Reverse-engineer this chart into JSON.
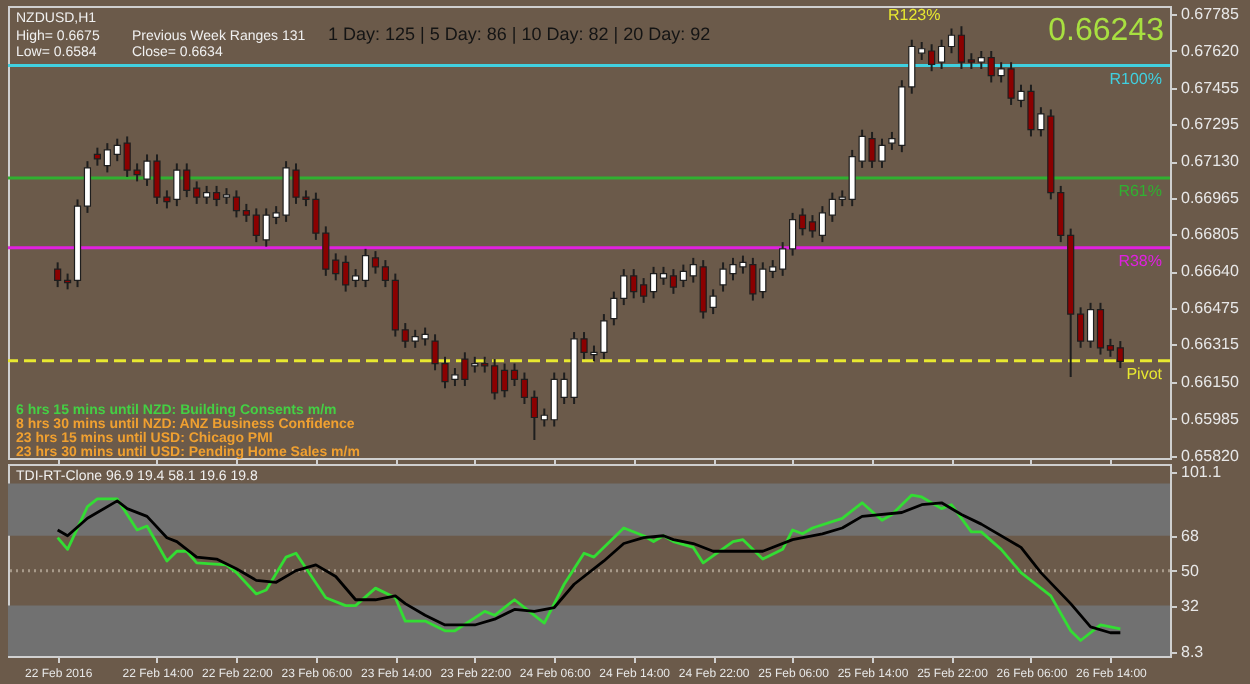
{
  "chart_data": [
    {
      "type": "candlestick",
      "title": "NZDUSD,H1",
      "x": [
        "2016-02-22T04:00",
        "2016-02-22T05:00",
        "2016-02-22T06:00",
        "2016-02-22T07:00",
        "2016-02-22T08:00",
        "2016-02-22T09:00",
        "2016-02-22T10:00",
        "2016-02-22T11:00",
        "2016-02-22T12:00",
        "2016-02-22T13:00",
        "2016-02-22T14:00",
        "2016-02-22T15:00",
        "2016-02-22T16:00",
        "2016-02-22T17:00",
        "2016-02-22T18:00",
        "2016-02-22T19:00",
        "2016-02-22T20:00",
        "2016-02-22T21:00",
        "2016-02-22T22:00",
        "2016-02-22T23:00",
        "2016-02-23T00:00",
        "2016-02-23T01:00",
        "2016-02-23T02:00",
        "2016-02-23T03:00",
        "2016-02-23T04:00",
        "2016-02-23T05:00",
        "2016-02-23T06:00",
        "2016-02-23T07:00",
        "2016-02-23T08:00",
        "2016-02-23T09:00",
        "2016-02-23T10:00",
        "2016-02-23T11:00",
        "2016-02-23T12:00",
        "2016-02-23T13:00",
        "2016-02-23T14:00",
        "2016-02-23T15:00",
        "2016-02-23T16:00",
        "2016-02-23T17:00",
        "2016-02-23T18:00",
        "2016-02-23T19:00",
        "2016-02-23T20:00",
        "2016-02-23T21:00",
        "2016-02-23T22:00",
        "2016-02-23T23:00",
        "2016-02-24T00:00",
        "2016-02-24T01:00",
        "2016-02-24T02:00",
        "2016-02-24T03:00",
        "2016-02-24T04:00",
        "2016-02-24T05:00",
        "2016-02-24T06:00",
        "2016-02-24T07:00",
        "2016-02-24T08:00",
        "2016-02-24T09:00",
        "2016-02-24T10:00",
        "2016-02-24T11:00",
        "2016-02-24T12:00",
        "2016-02-24T13:00",
        "2016-02-24T14:00",
        "2016-02-24T15:00",
        "2016-02-24T16:00",
        "2016-02-24T17:00",
        "2016-02-24T18:00",
        "2016-02-24T19:00",
        "2016-02-24T20:00",
        "2016-02-24T21:00",
        "2016-02-24T22:00",
        "2016-02-24T23:00",
        "2016-02-25T00:00",
        "2016-02-25T01:00",
        "2016-02-25T02:00",
        "2016-02-25T03:00",
        "2016-02-25T04:00",
        "2016-02-25T05:00",
        "2016-02-25T06:00",
        "2016-02-25T07:00",
        "2016-02-25T08:00",
        "2016-02-25T09:00",
        "2016-02-25T10:00",
        "2016-02-25T11:00",
        "2016-02-25T12:00",
        "2016-02-25T13:00",
        "2016-02-25T14:00",
        "2016-02-25T15:00",
        "2016-02-25T16:00",
        "2016-02-25T17:00",
        "2016-02-25T18:00",
        "2016-02-25T19:00",
        "2016-02-25T20:00",
        "2016-02-25T21:00",
        "2016-02-25T22:00",
        "2016-02-25T23:00",
        "2016-02-26T00:00",
        "2016-02-26T01:00",
        "2016-02-26T02:00",
        "2016-02-26T03:00",
        "2016-02-26T04:00",
        "2016-02-26T05:00",
        "2016-02-26T06:00",
        "2016-02-26T07:00",
        "2016-02-26T08:00",
        "2016-02-26T09:00",
        "2016-02-26T10:00",
        "2016-02-26T11:00",
        "2016-02-26T12:00",
        "2016-02-26T13:00",
        "2016-02-26T14:00",
        "2016-02-26T15:00"
      ],
      "ohlc": [
        [
          0.6665,
          0.6668,
          0.6657,
          0.666
        ],
        [
          0.666,
          0.6663,
          0.6656,
          0.6659
        ],
        [
          0.666,
          0.6696,
          0.6657,
          0.6693
        ],
        [
          0.6693,
          0.6713,
          0.669,
          0.671
        ],
        [
          0.6716,
          0.6719,
          0.6711,
          0.6714
        ],
        [
          0.6711,
          0.6721,
          0.6708,
          0.6718
        ],
        [
          0.6716,
          0.6723,
          0.6713,
          0.672
        ],
        [
          0.6721,
          0.6724,
          0.6706,
          0.6709
        ],
        [
          0.6709,
          0.6712,
          0.6704,
          0.6707
        ],
        [
          0.6705,
          0.6716,
          0.6702,
          0.6713
        ],
        [
          0.6713,
          0.6716,
          0.6694,
          0.6697
        ],
        [
          0.6697,
          0.67,
          0.6692,
          0.6695
        ],
        [
          0.6696,
          0.6712,
          0.6693,
          0.6709
        ],
        [
          0.6709,
          0.6712,
          0.6697,
          0.67
        ],
        [
          0.6701,
          0.6704,
          0.6694,
          0.6697
        ],
        [
          0.6697,
          0.6702,
          0.6694,
          0.6699
        ],
        [
          0.6699,
          0.6702,
          0.6693,
          0.6696
        ],
        [
          0.6697,
          0.6701,
          0.6694,
          0.6698
        ],
        [
          0.6697,
          0.67,
          0.6688,
          0.6691
        ],
        [
          0.6691,
          0.6694,
          0.6686,
          0.6689
        ],
        [
          0.6689,
          0.6692,
          0.6677,
          0.668
        ],
        [
          0.6678,
          0.6692,
          0.6675,
          0.6689
        ],
        [
          0.6688,
          0.6693,
          0.6685,
          0.669
        ],
        [
          0.6689,
          0.6713,
          0.6686,
          0.671
        ],
        [
          0.6709,
          0.6712,
          0.6694,
          0.6697
        ],
        [
          0.6697,
          0.67,
          0.6693,
          0.6696
        ],
        [
          0.6696,
          0.6699,
          0.6678,
          0.6681
        ],
        [
          0.6681,
          0.6684,
          0.6662,
          0.6665
        ],
        [
          0.6669,
          0.6672,
          0.666,
          0.6663
        ],
        [
          0.6668,
          0.6671,
          0.6655,
          0.6658
        ],
        [
          0.666,
          0.6665,
          0.6657,
          0.6662
        ],
        [
          0.666,
          0.6674,
          0.6657,
          0.6671
        ],
        [
          0.667,
          0.6673,
          0.6663,
          0.6666
        ],
        [
          0.6666,
          0.6669,
          0.6657,
          0.666
        ],
        [
          0.666,
          0.6663,
          0.6635,
          0.6638
        ],
        [
          0.6638,
          0.6641,
          0.663,
          0.6633
        ],
        [
          0.6633,
          0.6638,
          0.663,
          0.6635
        ],
        [
          0.6634,
          0.6639,
          0.6631,
          0.6636
        ],
        [
          0.6633,
          0.6636,
          0.662,
          0.6623
        ],
        [
          0.6623,
          0.6626,
          0.6612,
          0.6615
        ],
        [
          0.6616,
          0.6621,
          0.6613,
          0.6618
        ],
        [
          0.6625,
          0.6628,
          0.6613,
          0.6616
        ],
        [
          0.6622,
          0.6626,
          0.6619,
          0.6623
        ],
        [
          0.6623,
          0.6626,
          0.6619,
          0.6622
        ],
        [
          0.6622,
          0.6625,
          0.6607,
          0.661
        ],
        [
          0.662,
          0.6623,
          0.6608,
          0.6611
        ],
        [
          0.662,
          0.6623,
          0.6613,
          0.6616
        ],
        [
          0.6616,
          0.6619,
          0.6605,
          0.6608
        ],
        [
          0.6608,
          0.6611,
          0.6589,
          0.6599
        ],
        [
          0.6598,
          0.6603,
          0.6595,
          0.66
        ],
        [
          0.6598,
          0.6619,
          0.6595,
          0.6616
        ],
        [
          0.6608,
          0.6619,
          0.6605,
          0.6616
        ],
        [
          0.6608,
          0.6637,
          0.6605,
          0.6634
        ],
        [
          0.6634,
          0.6637,
          0.6625,
          0.6628
        ],
        [
          0.6627,
          0.6631,
          0.6624,
          0.6628
        ],
        [
          0.6628,
          0.6645,
          0.6625,
          0.6642
        ],
        [
          0.6643,
          0.6655,
          0.664,
          0.6652
        ],
        [
          0.6652,
          0.6665,
          0.6649,
          0.6662
        ],
        [
          0.6662,
          0.6665,
          0.6652,
          0.6655
        ],
        [
          0.6658,
          0.6661,
          0.665,
          0.6653
        ],
        [
          0.6655,
          0.6666,
          0.6652,
          0.6663
        ],
        [
          0.6661,
          0.6666,
          0.6658,
          0.6663
        ],
        [
          0.6662,
          0.6665,
          0.6654,
          0.6657
        ],
        [
          0.666,
          0.6667,
          0.6657,
          0.6664
        ],
        [
          0.6662,
          0.667,
          0.6659,
          0.6667
        ],
        [
          0.6666,
          0.6669,
          0.6643,
          0.6646
        ],
        [
          0.6648,
          0.6656,
          0.6645,
          0.6653
        ],
        [
          0.6658,
          0.6668,
          0.6655,
          0.6665
        ],
        [
          0.6663,
          0.667,
          0.666,
          0.6667
        ],
        [
          0.6666,
          0.6671,
          0.6663,
          0.6668
        ],
        [
          0.6667,
          0.667,
          0.6651,
          0.6654
        ],
        [
          0.6655,
          0.6668,
          0.6652,
          0.6665
        ],
        [
          0.6664,
          0.6669,
          0.6661,
          0.6666
        ],
        [
          0.6665,
          0.6677,
          0.6662,
          0.6674
        ],
        [
          0.6674,
          0.669,
          0.6671,
          0.6687
        ],
        [
          0.6689,
          0.6692,
          0.668,
          0.6683
        ],
        [
          0.6686,
          0.6689,
          0.6679,
          0.6682
        ],
        [
          0.668,
          0.6693,
          0.6677,
          0.669
        ],
        [
          0.6689,
          0.6699,
          0.6686,
          0.6696
        ],
        [
          0.6696,
          0.67,
          0.6693,
          0.6697
        ],
        [
          0.6696,
          0.6718,
          0.6693,
          0.6715
        ],
        [
          0.6713,
          0.6727,
          0.671,
          0.6724
        ],
        [
          0.6723,
          0.6726,
          0.671,
          0.6713
        ],
        [
          0.6713,
          0.6723,
          0.671,
          0.672
        ],
        [
          0.6721,
          0.6726,
          0.6718,
          0.6723
        ],
        [
          0.672,
          0.6749,
          0.6717,
          0.6746
        ],
        [
          0.6746,
          0.6767,
          0.6743,
          0.6764
        ],
        [
          0.6761,
          0.6766,
          0.6758,
          0.6763
        ],
        [
          0.6762,
          0.6765,
          0.6753,
          0.6756
        ],
        [
          0.6757,
          0.6767,
          0.6754,
          0.6764
        ],
        [
          0.6764,
          0.6772,
          0.6761,
          0.6769
        ],
        [
          0.6769,
          0.6773,
          0.6754,
          0.6757
        ],
        [
          0.6758,
          0.6761,
          0.6754,
          0.6757
        ],
        [
          0.6757,
          0.6762,
          0.6754,
          0.6759
        ],
        [
          0.6759,
          0.6762,
          0.6748,
          0.6751
        ],
        [
          0.6751,
          0.6757,
          0.6748,
          0.6754
        ],
        [
          0.6754,
          0.6757,
          0.6738,
          0.6741
        ],
        [
          0.674,
          0.6747,
          0.6737,
          0.6744
        ],
        [
          0.6744,
          0.6747,
          0.6724,
          0.6727
        ],
        [
          0.6727,
          0.6737,
          0.6724,
          0.6734
        ],
        [
          0.6733,
          0.6736,
          0.6696,
          0.6699
        ],
        [
          0.6699,
          0.6702,
          0.6677,
          0.668
        ],
        [
          0.668,
          0.6683,
          0.6617,
          0.6645
        ],
        [
          0.6645,
          0.6648,
          0.663,
          0.6633
        ],
        [
          0.6633,
          0.665,
          0.663,
          0.6647
        ],
        [
          0.6647,
          0.665,
          0.6627,
          0.663
        ],
        [
          0.6631,
          0.6634,
          0.6626,
          0.6629
        ],
        [
          0.663,
          0.6633,
          0.6621,
          0.6624
        ]
      ],
      "xlim": [
        "2016-02-21T23:00",
        "2016-02-26T20:00"
      ],
      "xticks": [
        {
          "value": "2016-02-22T04:00",
          "label": null
        },
        {
          "value": "2016-02-22T14:00",
          "label": null
        },
        {
          "value": "2016-02-22T22:00",
          "label": null
        },
        {
          "value": "2016-02-23T06:00",
          "label": null
        },
        {
          "value": "2016-02-23T14:00",
          "label": null
        },
        {
          "value": "2016-02-23T22:00",
          "label": null
        },
        {
          "value": "2016-02-24T06:00",
          "label": null
        },
        {
          "value": "2016-02-24T14:00",
          "label": null
        },
        {
          "value": "2016-02-24T22:00",
          "label": null
        },
        {
          "value": "2016-02-25T06:00",
          "label": null
        },
        {
          "value": "2016-02-25T14:00",
          "label": null
        },
        {
          "value": "2016-02-25T22:00",
          "label": null
        },
        {
          "value": "2016-02-26T06:00",
          "label": null
        },
        {
          "value": "2016-02-26T14:00",
          "label": null
        }
      ],
      "tick_labels": "y",
      "ylim": [
        0.6581,
        0.6782
      ],
      "yticks": [
        0.67785,
        {
          "value": 0.6762,
          "label": "0.67620"
        },
        0.67455,
        0.67295,
        {
          "value": 0.6713,
          "label": "0.67130"
        },
        0.66965,
        0.66805,
        {
          "value": 0.6664,
          "label": "0.66640"
        },
        0.66475,
        0.66315,
        {
          "value": 0.6615,
          "label": "0.66150"
        },
        0.65985,
        {
          "value": 0.6582,
          "label": "0.65820"
        }
      ],
      "ref_lines": [
        {
          "axis": "y",
          "value": 0.67555,
          "label": "R100%",
          "color": "#40d0e0"
        },
        {
          "axis": "y",
          "value": 0.67055,
          "label": "R61%",
          "color": "#30b030"
        },
        {
          "axis": "y",
          "value": 0.66745,
          "label": "R38%",
          "color": "#e020e0"
        },
        {
          "axis": "y",
          "value": 0.66243,
          "label": "Pivot",
          "color": "#e8e830",
          "line_style": "dashed"
        }
      ],
      "annotations": [
        "High= 0.6675",
        "Low= 0.6584",
        "Close= 0.6634",
        "Previous Week Ranges 131",
        "1 Day: 125 | 5 Day: 86 | 10 Day: 82 | 20 Day: 92",
        "R123%",
        "0.66243",
        "6 hrs 15 mins until NZD: Building Consents m/m",
        "8 hrs 30 mins until NZD: ANZ Business Confidence",
        "23 hrs 15 mins until USD: Chicago PMI",
        "23 hrs 30 mins until USD: Pending Home Sales m/m"
      ]
    },
    {
      "type": "line",
      "title": "TDI-RT-Clone 96.9 19.4 58.1 19.6 19.8",
      "xlim": [
        "2016-02-21T23:00",
        "2016-02-26T20:00"
      ],
      "xticks": [
        {
          "value": "2016-02-22T04:00",
          "label": "22 Feb 2016"
        },
        {
          "value": "2016-02-22T14:00",
          "label": "22 Feb 14:00"
        },
        {
          "value": "2016-02-22T22:00",
          "label": "22 Feb 22:00"
        },
        {
          "value": "2016-02-23T06:00",
          "label": "23 Feb 06:00"
        },
        {
          "value": "2016-02-23T14:00",
          "label": "23 Feb 14:00"
        },
        {
          "value": "2016-02-23T22:00",
          "label": "23 Feb 22:00"
        },
        {
          "value": "2016-02-24T06:00",
          "label": "24 Feb 06:00"
        },
        {
          "value": "2016-02-24T14:00",
          "label": "24 Feb 14:00"
        },
        {
          "value": "2016-02-24T22:00",
          "label": "24 Feb 22:00"
        },
        {
          "value": "2016-02-25T06:00",
          "label": "25 Feb 06:00"
        },
        {
          "value": "2016-02-25T14:00",
          "label": "25 Feb 14:00"
        },
        {
          "value": "2016-02-25T22:00",
          "label": "25 Feb 22:00"
        },
        {
          "value": "2016-02-26T06:00",
          "label": "26 Feb 06:00"
        },
        {
          "value": "2016-02-26T14:00",
          "label": "26 Feb 14:00"
        }
      ],
      "ylim": [
        6,
        105
      ],
      "yticks": [
        8.3,
        32,
        50,
        68,
        101.1
      ],
      "bands": [
        {
          "axis": "y",
          "from": 68,
          "to": 95,
          "color": "#717171"
        },
        {
          "axis": "y",
          "from": 6,
          "to": 32,
          "color": "#717171"
        }
      ],
      "ref_lines": [
        {
          "axis": "y",
          "value": 50,
          "color": "#a89a8a",
          "line_style": "dotted"
        }
      ],
      "series": [
        {
          "color": "#33dd33",
          "x": [
            "2016-02-22T04:00",
            "2016-02-22T05:00",
            "2016-02-22T07:00",
            "2016-02-22T08:00",
            "2016-02-22T10:00",
            "2016-02-22T12:00",
            "2016-02-22T13:00",
            "2016-02-22T15:00",
            "2016-02-22T16:00",
            "2016-02-22T17:00",
            "2016-02-22T18:00",
            "2016-02-22T21:00",
            "2016-02-22T22:00",
            "2016-02-23T00:00",
            "2016-02-23T01:00",
            "2016-02-23T03:00",
            "2016-02-23T04:00",
            "2016-02-23T07:00",
            "2016-02-23T09:00",
            "2016-02-23T10:00",
            "2016-02-23T12:00",
            "2016-02-23T14:00",
            "2016-02-23T15:00",
            "2016-02-23T17:00",
            "2016-02-23T19:00",
            "2016-02-23T20:00",
            "2016-02-23T23:00",
            "2016-02-24T00:00",
            "2016-02-24T02:00",
            "2016-02-24T04:00",
            "2016-02-24T05:00",
            "2016-02-24T07:00",
            "2016-02-24T09:00",
            "2016-02-24T10:00",
            "2016-02-24T13:00",
            "2016-02-24T15:00",
            "2016-02-24T16:00",
            "2016-02-24T17:00",
            "2016-02-24T18:00",
            "2016-02-24T20:00",
            "2016-02-24T21:00",
            "2016-02-25T00:00",
            "2016-02-25T01:00",
            "2016-02-25T03:00",
            "2016-02-25T05:00",
            "2016-02-25T06:00",
            "2016-02-25T07:00",
            "2016-02-25T08:00",
            "2016-02-25T11:00",
            "2016-02-25T13:00",
            "2016-02-25T15:00",
            "2016-02-25T16:00",
            "2016-02-25T18:00",
            "2016-02-25T19:00",
            "2016-02-25T21:00",
            "2016-02-25T22:00",
            "2016-02-26T00:00",
            "2016-02-26T01:00",
            "2016-02-26T03:00",
            "2016-02-26T05:00",
            "2016-02-26T08:00",
            "2016-02-26T10:00",
            "2016-02-26T11:00",
            "2016-02-26T13:00",
            "2016-02-26T15:00"
          ],
          "values": [
            67,
            61,
            83,
            87,
            87,
            71,
            73,
            55,
            60,
            60,
            54,
            53,
            49,
            38,
            40,
            57,
            59,
            36,
            32,
            32,
            41,
            36,
            24,
            24,
            19,
            19,
            29,
            27,
            35,
            27,
            23,
            43,
            59,
            57,
            72,
            68,
            65,
            68,
            65,
            62,
            54,
            65,
            66,
            56,
            61,
            71,
            69,
            72,
            77,
            85,
            76,
            79,
            89,
            88,
            82,
            84,
            70,
            70,
            61,
            49,
            37,
            19,
            14,
            22,
            20
          ]
        },
        {
          "color": "#000000",
          "x": [
            "2016-02-22T04:00",
            "2016-02-22T05:00",
            "2016-02-22T07:00",
            "2016-02-22T10:00",
            "2016-02-22T11:00",
            "2016-02-22T13:00",
            "2016-02-22T15:00",
            "2016-02-22T16:00",
            "2016-02-22T18:00",
            "2016-02-22T20:00",
            "2016-02-22T22:00",
            "2016-02-23T00:00",
            "2016-02-23T02:00",
            "2016-02-23T04:00",
            "2016-02-23T06:00",
            "2016-02-23T08:00",
            "2016-02-23T10:00",
            "2016-02-23T12:00",
            "2016-02-23T14:00",
            "2016-02-23T15:00",
            "2016-02-23T17:00",
            "2016-02-23T19:00",
            "2016-02-23T22:00",
            "2016-02-24T00:00",
            "2016-02-24T02:00",
            "2016-02-24T04:00",
            "2016-02-24T06:00",
            "2016-02-24T08:00",
            "2016-02-24T11:00",
            "2016-02-24T13:00",
            "2016-02-24T15:00",
            "2016-02-24T17:00",
            "2016-02-24T18:00",
            "2016-02-24T20:00",
            "2016-02-24T22:00",
            "2016-02-25T03:00",
            "2016-02-25T06:00",
            "2016-02-25T09:00",
            "2016-02-25T11:00",
            "2016-02-25T13:00",
            "2016-02-25T17:00",
            "2016-02-25T19:00",
            "2016-02-25T21:00",
            "2016-02-25T23:00",
            "2016-02-26T01:00",
            "2016-02-26T05:00",
            "2016-02-26T07:00",
            "2016-02-26T10:00",
            "2016-02-26T12:00",
            "2016-02-26T14:00",
            "2016-02-26T15:00"
          ],
          "values": [
            71,
            68,
            77,
            86,
            82,
            78,
            67,
            65,
            57,
            56,
            51,
            45,
            44,
            50,
            53,
            47,
            35,
            35,
            37,
            33,
            27,
            22,
            22,
            25,
            30,
            29,
            31,
            43,
            55,
            64,
            67,
            68,
            66,
            64,
            60,
            60,
            66,
            69,
            72,
            78,
            80,
            84,
            85,
            79,
            74,
            62,
            49,
            33,
            21,
            18,
            18
          ]
        }
      ]
    }
  ]
}
